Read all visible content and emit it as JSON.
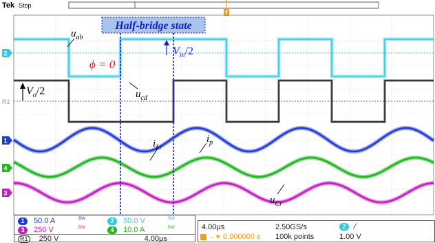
{
  "header": {
    "brand": "Tek",
    "status": "Stop",
    "trigger_marker": "T"
  },
  "annotations": {
    "state_label": "Half-bridge state",
    "phase_label": "ϕ = 0",
    "uab": {
      "base": "u",
      "sub": "ab"
    },
    "ucd": {
      "base": "u",
      "sub": "cd"
    },
    "iLr": {
      "base": "i",
      "sub": "Lr"
    },
    "ip": {
      "base": "i",
      "sub": "p"
    },
    "uCr": {
      "base": "u",
      "sub": "Cr"
    },
    "vin_half": {
      "base": "V",
      "sub": "in",
      "tail": "/2"
    },
    "vo_half": {
      "base": "V",
      "sub": "o",
      "tail": "/2"
    }
  },
  "channel_markers": {
    "ch2": "2",
    "r1": "R1",
    "ch1": "1",
    "ch4": "4",
    "ch3": "3"
  },
  "channels": [
    {
      "id": "1",
      "scale": "50.0 A",
      "bw": "BW",
      "color": "#1f3bd6"
    },
    {
      "id": "2",
      "scale": "50.0 V",
      "bw": "BW",
      "color": "#33c8e0"
    },
    {
      "id": "3",
      "scale": "250 V",
      "bw": "BW",
      "color": "#c21fc2"
    },
    {
      "id": "4",
      "scale": "10.0 A",
      "bw": "BW",
      "color": "#22b422"
    }
  ],
  "ref": {
    "id": "R1",
    "scale": "250 V",
    "time": "4.00μs"
  },
  "timebase": {
    "horizontal": "4.00μs",
    "sample_rate": "2.50GS/s",
    "trigger_pos": "0.000000 s",
    "record_length": "100k points",
    "trigger_channel": "2",
    "trigger_slope": "∕",
    "trigger_level": "1.00 V"
  },
  "colors": {
    "cyan": "#33c8e0",
    "black": "#111111",
    "blue": "#1f3bd6",
    "green": "#22b422",
    "magenta": "#c21fc2",
    "trigger": "#f29b1d",
    "annotation_blue": "#1a1ad6",
    "phase_red": "#e21b1b"
  }
}
